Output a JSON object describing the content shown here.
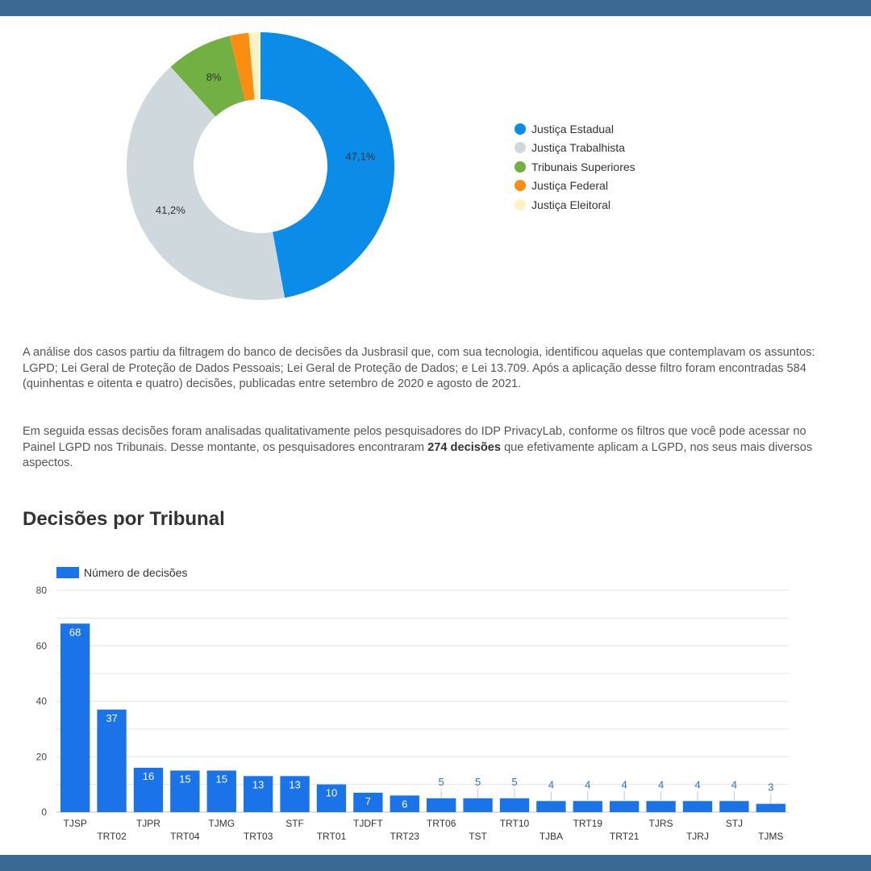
{
  "colors": {
    "frame": "#3a6b95",
    "bar": "#1a73e8",
    "text": "#333333"
  },
  "chart_data": [
    {
      "type": "pie",
      "variant": "donut",
      "title": "",
      "legend_position": "right",
      "series": [
        {
          "name": "Justiça Estadual",
          "value": 47.1,
          "label": "47,1%",
          "color": "#0b8ce9"
        },
        {
          "name": "Justiça Trabalhista",
          "value": 41.2,
          "label": "41,2%",
          "color": "#cfd8dc"
        },
        {
          "name": "Tribunais Superiores",
          "value": 8.0,
          "label": "8%",
          "color": "#72b043"
        },
        {
          "name": "Justiça Federal",
          "value": 2.3,
          "label": "",
          "color": "#f98e13"
        },
        {
          "name": "Justiça Eleitoral",
          "value": 1.4,
          "label": "",
          "color": "#fff2c2"
        }
      ]
    },
    {
      "type": "bar",
      "title": "Decisões por Tribunal",
      "series_name": "Número de decisões",
      "legend_position": "top-left",
      "ylim": [
        0,
        80
      ],
      "yticks": [
        0,
        20,
        40,
        60,
        80
      ],
      "grid": true,
      "categories": [
        "TJSP",
        "TRT02",
        "TJPR",
        "TRT04",
        "TJMG",
        "TRT03",
        "STF",
        "TRT01",
        "TJDFT",
        "TRT23",
        "TRT06",
        "TST",
        "TRT10",
        "TJBA",
        "TRT19",
        "TRT21",
        "TJRS",
        "TJRJ",
        "STJ",
        "TJMS"
      ],
      "values": [
        68,
        37,
        16,
        15,
        15,
        13,
        13,
        10,
        7,
        6,
        5,
        5,
        5,
        4,
        4,
        4,
        4,
        4,
        4,
        3
      ]
    }
  ],
  "text": {
    "paragraph1": "A análise dos casos partiu da filtragem do banco de decisões da Jusbrasil que, com sua tecnologia, identificou aquelas que contemplavam os assuntos: LGPD; Lei Geral de Proteção de Dados Pessoais; Lei Geral de Proteção de Dados; e Lei 13.709. Após a aplicação desse filtro foram encontradas 584 (quinhentas e oitenta e quatro) decisões, publicadas entre setembro de 2020 e agosto de 2021.",
    "paragraph2_before": "Em seguida essas decisões foram analisadas qualitativamente pelos pesquisadores do IDP PrivacyLab, conforme os filtros que você pode acessar no Painel LGPD nos Tribunais. Desse montante, os pesquisadores encontraram ",
    "paragraph2_bold": "274 decisões",
    "paragraph2_after": " que efetivamente aplicam a LGPD, nos seus mais diversos aspectos."
  }
}
